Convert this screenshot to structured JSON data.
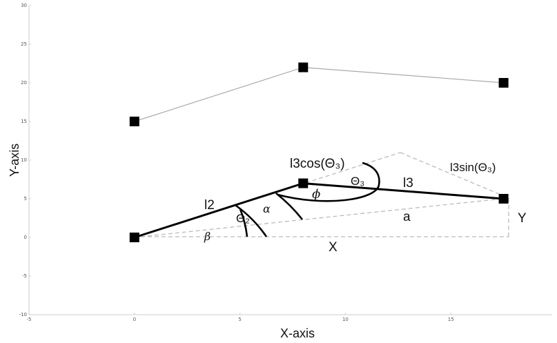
{
  "chart_data": {
    "type": "line",
    "xlabel": "X-axis",
    "ylabel": "Y-axis",
    "xlim": [
      -5,
      20
    ],
    "ylim": [
      -10,
      30
    ],
    "x_ticks": [
      -5,
      0,
      5,
      10,
      15
    ],
    "y_ticks": [
      -10,
      -5,
      0,
      5,
      10,
      15,
      20,
      25,
      30
    ],
    "grid": false,
    "series": [
      {
        "points": [
          [
            0,
            15
          ],
          [
            8,
            22
          ],
          [
            17.5,
            20
          ]
        ],
        "color": "#aaaaaa",
        "marker": "square"
      },
      {
        "points": [
          [
            0,
            0
          ],
          [
            8,
            7
          ],
          [
            17.5,
            5
          ]
        ],
        "color": "#000000",
        "marker": "square"
      }
    ],
    "annotations": {
      "l2": "l2",
      "l3": "l3",
      "l3cos": "l3cos(Θ₃)",
      "l3sin": "l3sin(Θ₃)",
      "theta3": "Θ₃",
      "theta2": "Θ₂",
      "phi": "ϕ",
      "alpha": "α",
      "beta": "β",
      "a": "a",
      "X": "X",
      "Y": "Y"
    }
  }
}
